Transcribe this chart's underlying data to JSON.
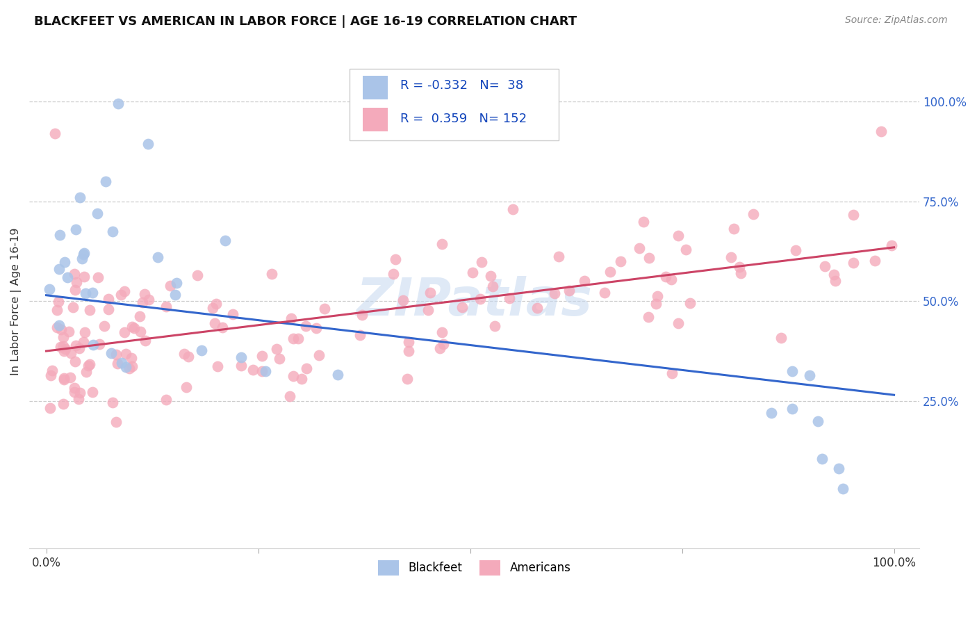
{
  "title": "BLACKFEET VS AMERICAN IN LABOR FORCE | AGE 16-19 CORRELATION CHART",
  "source": "Source: ZipAtlas.com",
  "ylabel": "In Labor Force | Age 16-19",
  "legend_r_blue": "-0.332",
  "legend_n_blue": "38",
  "legend_r_pink": "0.359",
  "legend_n_pink": "152",
  "watermark": "ZIPatlas",
  "blue_color": "#aac4e8",
  "pink_color": "#f4aabb",
  "blue_line_color": "#3366cc",
  "pink_line_color": "#cc4466",
  "blue_line_y0": 0.515,
  "blue_line_y1": 0.265,
  "pink_line_y0": 0.375,
  "pink_line_y1": 0.635,
  "right_tick_color": "#3366cc",
  "ytick_labels": [
    "25.0%",
    "50.0%",
    "75.0%",
    "100.0%"
  ],
  "ytick_vals": [
    0.25,
    0.5,
    0.75,
    1.0
  ],
  "grid_color": "#cccccc",
  "xlim": [
    -0.02,
    1.03
  ],
  "ylim": [
    -0.12,
    1.12
  ]
}
